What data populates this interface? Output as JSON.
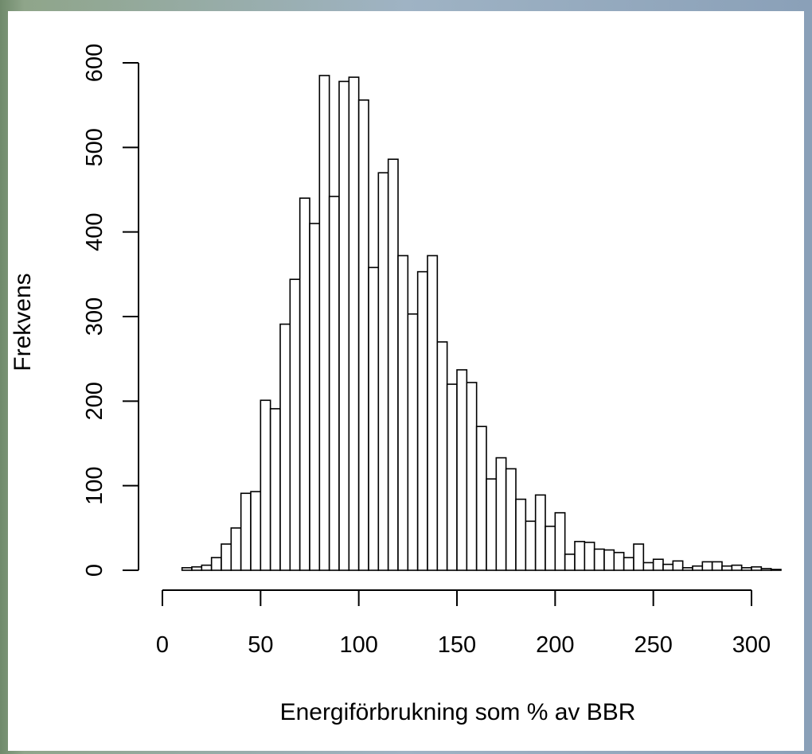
{
  "chart_data": {
    "type": "bar",
    "subtype": "histogram",
    "xlabel": "Energiförbrukning som % av BBR",
    "ylabel": "Frekvens",
    "bin_width": 5,
    "bin_start": 10,
    "xlim": [
      0,
      310
    ],
    "ylim": [
      0,
      600
    ],
    "x_ticks": [
      "0",
      "50",
      "100",
      "150",
      "200",
      "250",
      "300"
    ],
    "y_ticks": [
      "0",
      "100",
      "200",
      "300",
      "400",
      "500",
      "600"
    ],
    "values": [
      3,
      4,
      6,
      15,
      31,
      50,
      91,
      93,
      201,
      191,
      291,
      344,
      440,
      410,
      585,
      442,
      578,
      583,
      556,
      358,
      470,
      486,
      372,
      303,
      353,
      372,
      270,
      220,
      237,
      222,
      170,
      108,
      133,
      120,
      84,
      58,
      89,
      52,
      68,
      19,
      34,
      33,
      25,
      24,
      21,
      15,
      31,
      9,
      13,
      7,
      11,
      3,
      5,
      10,
      10,
      5,
      6,
      3,
      4,
      2,
      1
    ],
    "grid": false,
    "legend": "none",
    "bar_fill": "#ffffff",
    "bar_stroke": "#000000"
  }
}
